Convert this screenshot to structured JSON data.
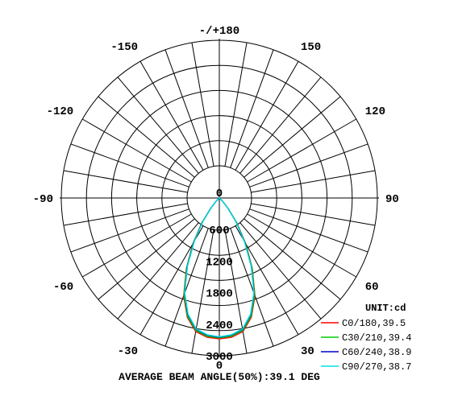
{
  "chart_data": {
    "type": "polar",
    "unit_label": "UNIT:cd",
    "angle_labels": [
      {
        "angle": 180,
        "text": "-/+180"
      },
      {
        "angle": -150,
        "text": "-150"
      },
      {
        "angle": 150,
        "text": "150"
      },
      {
        "angle": -120,
        "text": "-120"
      },
      {
        "angle": 120,
        "text": "120"
      },
      {
        "angle": -90,
        "text": "-90"
      },
      {
        "angle": 90,
        "text": "90"
      },
      {
        "angle": -60,
        "text": "-60"
      },
      {
        "angle": 60,
        "text": "60"
      },
      {
        "angle": -30,
        "text": "-30"
      },
      {
        "angle": 30,
        "text": "30"
      },
      {
        "angle": 0,
        "text": "0"
      }
    ],
    "radial_ticks": [
      0,
      600,
      1200,
      1800,
      2400,
      3000
    ],
    "radial_range": [
      0,
      3000
    ],
    "series": [
      {
        "name": "C0/180,39.5",
        "color": "#ff0000",
        "points": [
          [
            0,
            2680
          ],
          [
            5,
            2660
          ],
          [
            10,
            2580
          ],
          [
            15,
            2350
          ],
          [
            20,
            1980
          ],
          [
            25,
            1480
          ],
          [
            30,
            1000
          ],
          [
            35,
            580
          ],
          [
            40,
            260
          ],
          [
            45,
            90
          ],
          [
            50,
            0
          ]
        ]
      },
      {
        "name": "C30/210,39.4",
        "color": "#00cc00",
        "points": [
          [
            0,
            2660
          ],
          [
            5,
            2640
          ],
          [
            10,
            2560
          ],
          [
            15,
            2330
          ],
          [
            20,
            1960
          ],
          [
            25,
            1470
          ],
          [
            30,
            990
          ],
          [
            35,
            570
          ],
          [
            40,
            255
          ],
          [
            45,
            85
          ],
          [
            50,
            0
          ]
        ]
      },
      {
        "name": "C60/240,38.9",
        "color": "#0000cc",
        "points": [
          [
            0,
            2650
          ],
          [
            5,
            2620
          ],
          [
            10,
            2540
          ],
          [
            15,
            2300
          ],
          [
            20,
            1930
          ],
          [
            25,
            1440
          ],
          [
            30,
            960
          ],
          [
            35,
            550
          ],
          [
            40,
            240
          ],
          [
            45,
            80
          ],
          [
            50,
            0
          ]
        ]
      },
      {
        "name": "C90/270,38.7",
        "color": "#00e0e0",
        "points": [
          [
            0,
            2640
          ],
          [
            5,
            2610
          ],
          [
            10,
            2530
          ],
          [
            15,
            2290
          ],
          [
            20,
            1920
          ],
          [
            25,
            1430
          ],
          [
            30,
            950
          ],
          [
            35,
            540
          ],
          [
            40,
            235
          ],
          [
            45,
            78
          ],
          [
            50,
            0
          ]
        ]
      }
    ]
  },
  "footer": "AVERAGE BEAM ANGLE(50%):39.1 DEG"
}
